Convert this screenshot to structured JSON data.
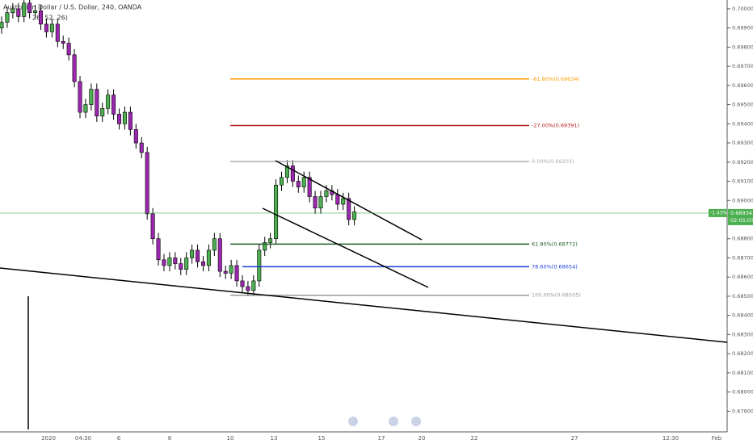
{
  "chart_data": {
    "type": "candlestick",
    "title": "Australian Dollar / U.S. Dollar, 240, OANDA",
    "subtitle": "26, 52, 26)",
    "ylim": [
      0.67855,
      0.70046
    ],
    "yticks": [
      {
        "value": 0.7,
        "label": "0.70000"
      },
      {
        "value": 0.699,
        "label": "0.69900"
      },
      {
        "value": 0.698,
        "label": "0.69800"
      },
      {
        "value": 0.697,
        "label": "0.69700"
      },
      {
        "value": 0.696,
        "label": "0.69600"
      },
      {
        "value": 0.695,
        "label": "0.69500"
      },
      {
        "value": 0.694,
        "label": "0.69400"
      },
      {
        "value": 0.693,
        "label": "0.69300"
      },
      {
        "value": 0.692,
        "label": "0.69200"
      },
      {
        "value": 0.691,
        "label": "0.69100"
      },
      {
        "value": 0.69,
        "label": "0.69000"
      },
      {
        "value": 0.688,
        "label": "0.68800"
      },
      {
        "value": 0.687,
        "label": "0.68700"
      },
      {
        "value": 0.686,
        "label": "0.68600"
      },
      {
        "value": 0.685,
        "label": "0.68500"
      },
      {
        "value": 0.684,
        "label": "0.68400"
      },
      {
        "value": 0.683,
        "label": "0.68300"
      },
      {
        "value": 0.682,
        "label": "0.68200"
      },
      {
        "value": 0.681,
        "label": "0.68100"
      },
      {
        "value": 0.68,
        "label": "0.68000"
      },
      {
        "value": 0.679,
        "label": "0.67900"
      }
    ],
    "x_labels": [
      "2020",
      "04:30",
      "6",
      "8",
      "10",
      "13",
      "15",
      "17",
      "20",
      "22",
      "27",
      "12:30",
      "Feb"
    ],
    "up_color": "#4caf50",
    "down_color": "#9c27b0",
    "open": [
      0.699,
      0.6993,
      0.6998,
      0.7,
      0.6996,
      0.7003,
      0.6998,
      0.6999,
      0.6992,
      0.6988,
      0.6992,
      0.6983,
      0.6982,
      0.6976,
      0.6962,
      0.6946,
      0.695,
      0.6958,
      0.6944,
      0.6948,
      0.6955,
      0.6945,
      0.694,
      0.6946,
      0.6937,
      0.693,
      0.6925,
      0.6893,
      0.688,
      0.6869,
      0.6866,
      0.687,
      0.6867,
      0.6864,
      0.687,
      0.6874,
      0.6868,
      0.6866,
      0.6874,
      0.688,
      0.6863,
      0.6862,
      0.6866,
      0.6858,
      0.6855,
      0.6853,
      0.6858,
      0.6874,
      0.6878,
      0.688,
      0.6908,
      0.6912,
      0.6918,
      0.691,
      0.6907,
      0.6912,
      0.6902,
      0.6896,
      0.6902,
      0.6905,
      0.6903,
      0.6898,
      0.6901,
      0.689
    ],
    "high": [
      0.6996,
      0.7001,
      0.7003,
      0.7003,
      0.7006,
      0.7006,
      0.7002,
      0.7002,
      0.6995,
      0.6995,
      0.6995,
      0.6986,
      0.6985,
      0.6979,
      0.6965,
      0.6953,
      0.6961,
      0.6961,
      0.6951,
      0.6958,
      0.6958,
      0.6948,
      0.6949,
      0.6949,
      0.694,
      0.6933,
      0.6928,
      0.6896,
      0.6883,
      0.6872,
      0.6873,
      0.6873,
      0.687,
      0.6873,
      0.6877,
      0.6877,
      0.6871,
      0.6877,
      0.6883,
      0.6883,
      0.6866,
      0.6869,
      0.6869,
      0.6861,
      0.6858,
      0.6861,
      0.6877,
      0.6881,
      0.6883,
      0.6911,
      0.6915,
      0.6921,
      0.6921,
      0.6913,
      0.6915,
      0.6915,
      0.6905,
      0.6905,
      0.6908,
      0.6908,
      0.6906,
      0.6904,
      0.6904,
      0.6897
    ],
    "low": [
      0.6987,
      0.699,
      0.6995,
      0.6993,
      0.6993,
      0.6995,
      0.6995,
      0.6989,
      0.6985,
      0.6985,
      0.698,
      0.6979,
      0.6973,
      0.6959,
      0.6943,
      0.6943,
      0.6947,
      0.6941,
      0.6941,
      0.6945,
      0.6942,
      0.6937,
      0.6937,
      0.6934,
      0.6927,
      0.6922,
      0.689,
      0.6877,
      0.6866,
      0.6863,
      0.6863,
      0.6864,
      0.6861,
      0.6861,
      0.6867,
      0.6865,
      0.6863,
      0.6863,
      0.6871,
      0.686,
      0.6859,
      0.6859,
      0.6855,
      0.6852,
      0.685,
      0.685,
      0.6855,
      0.6871,
      0.6875,
      0.6877,
      0.6905,
      0.6909,
      0.6907,
      0.6904,
      0.6904,
      0.6899,
      0.6893,
      0.6893,
      0.6899,
      0.69,
      0.6895,
      0.6895,
      0.6887,
      0.6887
    ],
    "close": [
      0.6993,
      0.6998,
      0.7,
      0.6996,
      0.7003,
      0.6998,
      0.6999,
      0.6992,
      0.6988,
      0.6992,
      0.6983,
      0.6982,
      0.6976,
      0.6962,
      0.6946,
      0.695,
      0.6958,
      0.6944,
      0.6948,
      0.6955,
      0.6945,
      0.694,
      0.6946,
      0.6937,
      0.693,
      0.6925,
      0.6893,
      0.688,
      0.6869,
      0.6866,
      0.687,
      0.6867,
      0.6864,
      0.687,
      0.6874,
      0.6868,
      0.6866,
      0.6874,
      0.688,
      0.6863,
      0.6862,
      0.6866,
      0.6858,
      0.6855,
      0.6853,
      0.6858,
      0.6874,
      0.6878,
      0.688,
      0.6908,
      0.6912,
      0.6918,
      0.691,
      0.6907,
      0.6912,
      0.6902,
      0.6896,
      0.6902,
      0.6905,
      0.6903,
      0.6898,
      0.6901,
      0.689,
      0.6894
    ],
    "fib_levels": [
      {
        "label": "-61.80%(0.69634)",
        "value": 0.69634,
        "color": "#ff9800"
      },
      {
        "label": "-27.00%(0.69391)",
        "value": 0.69391,
        "color": "#b71c1c"
      },
      {
        "label": "0.00%(0.69203)",
        "value": 0.69203,
        "color": "#aaaaaa"
      },
      {
        "label": "61.80%(0.68772)",
        "value": 0.68772,
        "color": "#1b5e20"
      },
      {
        "label": "78.60%(0.68654)",
        "value": 0.68654,
        "color": "#1e3fd8"
      },
      {
        "label": "100.00%(0.68505)",
        "value": 0.68505,
        "color": "#999999"
      }
    ],
    "last_price": {
      "value": 0.68934,
      "label": "0.68934",
      "change": "-1.43%",
      "countdown": "02:05:03",
      "color": "#4caf50"
    }
  }
}
